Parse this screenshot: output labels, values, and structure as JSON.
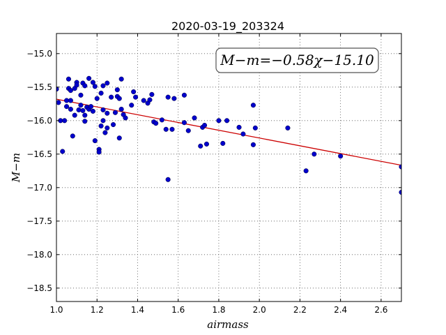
{
  "chart_data": {
    "type": "scatter",
    "title": "2020-03-19_203324",
    "xlabel": "airmass",
    "ylabel": "M−m",
    "xlim": [
      1.0,
      2.7
    ],
    "ylim": [
      -18.7,
      -14.7
    ],
    "y_inverted": true,
    "x_ticks": [
      1.0,
      1.2,
      1.4,
      1.6,
      1.8,
      2.0,
      2.2,
      2.4,
      2.6
    ],
    "x_tick_labels": [
      "1.0",
      "1.2",
      "1.4",
      "1.6",
      "1.8",
      "2.0",
      "2.2",
      "2.4",
      "2.6"
    ],
    "y_ticks": [
      -15.0,
      -15.5,
      -16.0,
      -16.5,
      -17.0,
      -17.5,
      -18.0,
      -18.5
    ],
    "y_tick_labels": [
      "−15.0",
      "−15.5",
      "−16.0",
      "−16.5",
      "−17.0",
      "−17.5",
      "−18.0",
      "−18.5"
    ],
    "grid": true,
    "annotation": "M−m=−0.58χ−15.10",
    "fit": {
      "slope": -0.58,
      "intercept": -15.1,
      "color": "#cc0000"
    },
    "point_color": "#0000cc",
    "points": [
      [
        1.0,
        -15.53
      ],
      [
        1.01,
        -15.73
      ],
      [
        1.02,
        -16.0
      ],
      [
        1.03,
        -16.46
      ],
      [
        1.04,
        -16.0
      ],
      [
        1.05,
        -15.7
      ],
      [
        1.05,
        -15.79
      ],
      [
        1.06,
        -15.52
      ],
      [
        1.06,
        -15.38
      ],
      [
        1.07,
        -15.55
      ],
      [
        1.07,
        -15.7
      ],
      [
        1.07,
        -15.83
      ],
      [
        1.08,
        -16.23
      ],
      [
        1.09,
        -15.52
      ],
      [
        1.09,
        -15.92
      ],
      [
        1.1,
        -15.43
      ],
      [
        1.1,
        -15.47
      ],
      [
        1.11,
        -15.84
      ],
      [
        1.12,
        -15.62
      ],
      [
        1.12,
        -15.77
      ],
      [
        1.13,
        -15.44
      ],
      [
        1.13,
        -15.85
      ],
      [
        1.14,
        -15.48
      ],
      [
        1.14,
        -15.92
      ],
      [
        1.14,
        -16.01
      ],
      [
        1.15,
        -15.8
      ],
      [
        1.16,
        -15.37
      ],
      [
        1.16,
        -15.83
      ],
      [
        1.17,
        -15.79
      ],
      [
        1.18,
        -15.43
      ],
      [
        1.18,
        -15.86
      ],
      [
        1.19,
        -15.49
      ],
      [
        1.19,
        -16.3
      ],
      [
        1.2,
        -15.67
      ],
      [
        1.21,
        -16.43
      ],
      [
        1.21,
        -16.47
      ],
      [
        1.22,
        -15.59
      ],
      [
        1.22,
        -16.08
      ],
      [
        1.23,
        -15.48
      ],
      [
        1.23,
        -15.84
      ],
      [
        1.23,
        -16.0
      ],
      [
        1.24,
        -16.18
      ],
      [
        1.25,
        -15.44
      ],
      [
        1.25,
        -15.89
      ],
      [
        1.25,
        -16.11
      ],
      [
        1.27,
        -15.65
      ],
      [
        1.28,
        -16.06
      ],
      [
        1.29,
        -15.88
      ],
      [
        1.3,
        -15.54
      ],
      [
        1.3,
        -15.64
      ],
      [
        1.31,
        -15.67
      ],
      [
        1.31,
        -16.26
      ],
      [
        1.32,
        -15.38
      ],
      [
        1.32,
        -15.83
      ],
      [
        1.33,
        -15.91
      ],
      [
        1.34,
        -15.96
      ],
      [
        1.37,
        -15.77
      ],
      [
        1.38,
        -15.57
      ],
      [
        1.39,
        -15.65
      ],
      [
        1.43,
        -15.7
      ],
      [
        1.45,
        -15.74
      ],
      [
        1.46,
        -15.69
      ],
      [
        1.47,
        -15.61
      ],
      [
        1.48,
        -16.02
      ],
      [
        1.49,
        -16.04
      ],
      [
        1.52,
        -15.99
      ],
      [
        1.54,
        -16.13
      ],
      [
        1.55,
        -15.65
      ],
      [
        1.55,
        -16.88
      ],
      [
        1.57,
        -16.13
      ],
      [
        1.58,
        -15.67
      ],
      [
        1.63,
        -15.62
      ],
      [
        1.63,
        -16.03
      ],
      [
        1.65,
        -16.15
      ],
      [
        1.68,
        -15.96
      ],
      [
        1.71,
        -16.38
      ],
      [
        1.72,
        -16.1
      ],
      [
        1.73,
        -16.07
      ],
      [
        1.74,
        -16.35
      ],
      [
        1.8,
        -16.0
      ],
      [
        1.82,
        -16.34
      ],
      [
        1.84,
        -16.0
      ],
      [
        1.9,
        -16.1
      ],
      [
        1.92,
        -16.2
      ],
      [
        1.97,
        -15.77
      ],
      [
        1.97,
        -16.36
      ],
      [
        1.98,
        -16.11
      ],
      [
        2.14,
        -16.11
      ],
      [
        2.23,
        -16.75
      ],
      [
        2.27,
        -16.5
      ],
      [
        2.4,
        -16.53
      ],
      [
        2.7,
        -16.69
      ],
      [
        2.7,
        -17.07
      ]
    ]
  }
}
